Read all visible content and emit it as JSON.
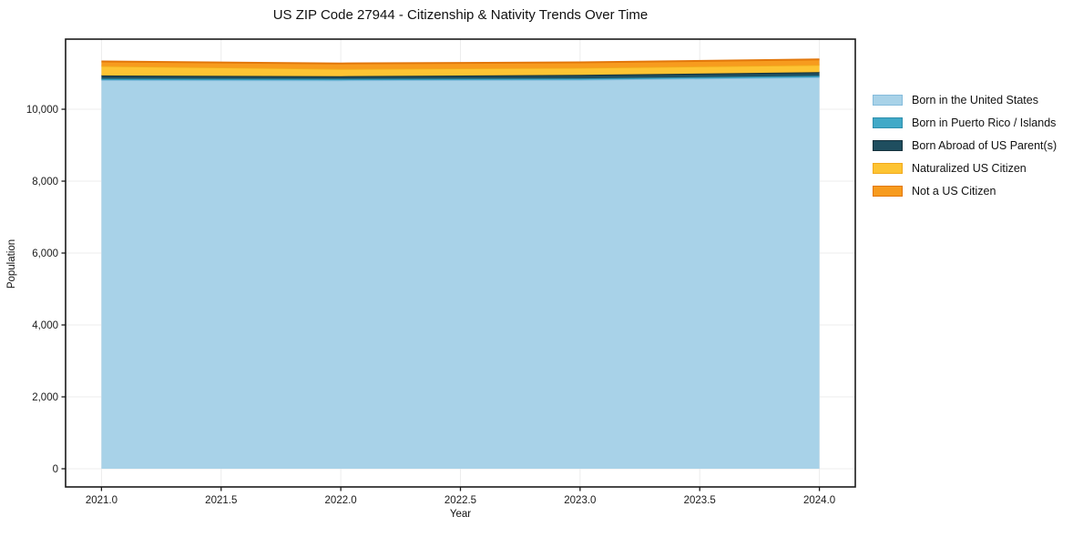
{
  "chart_data": {
    "type": "area",
    "stacked": true,
    "title": "US ZIP Code 27944 - Citizenship & Nativity Trends Over Time",
    "xlabel": "Year",
    "ylabel": "Population",
    "x": [
      2021,
      2022,
      2023,
      2024
    ],
    "series": [
      {
        "name": "Born in the United States",
        "values": [
          10810,
          10805,
          10820,
          10890
        ],
        "fill": "#A8D2E8",
        "edge": "#85BCDC"
      },
      {
        "name": "Born in Puerto Rico / Islands",
        "values": [
          40,
          40,
          40,
          40
        ],
        "fill": "#41A9C7",
        "edge": "#2E8FAD"
      },
      {
        "name": "Born Abroad of US Parent(s)",
        "values": [
          90,
          75,
          95,
          100
        ],
        "fill": "#1F4E5F",
        "edge": "#13303B"
      },
      {
        "name": "Naturalized US Citizen",
        "values": [
          265,
          205,
          200,
          205
        ],
        "fill": "#FDC433",
        "edge": "#F2A91C"
      },
      {
        "name": "Not a US Citizen",
        "values": [
          125,
          150,
          150,
          150
        ],
        "fill": "#F79B1E",
        "edge": "#E2770B"
      }
    ],
    "xlim": [
      2020.85,
      2024.15
    ],
    "ylim": [
      -506,
      11950
    ],
    "xticks": [
      2021.0,
      2021.5,
      2022.0,
      2022.5,
      2023.0,
      2023.5,
      2024.0
    ],
    "xtick_labels": [
      "2021.0",
      "2021.5",
      "2022.0",
      "2022.5",
      "2023.0",
      "2023.5",
      "2024.0"
    ],
    "ytick_values": [
      0,
      2000,
      4000,
      6000,
      8000,
      10000
    ],
    "ytick_labels": [
      "0",
      "2,000",
      "4,000",
      "6,000",
      "8,000",
      "10,000"
    ],
    "grid": true,
    "legend_position": "right-outside",
    "colors": {
      "grid": "#ECECEC",
      "spine": "#1a1a1a",
      "tick_label": "#1a1a1a",
      "background": "#ffffff"
    }
  }
}
